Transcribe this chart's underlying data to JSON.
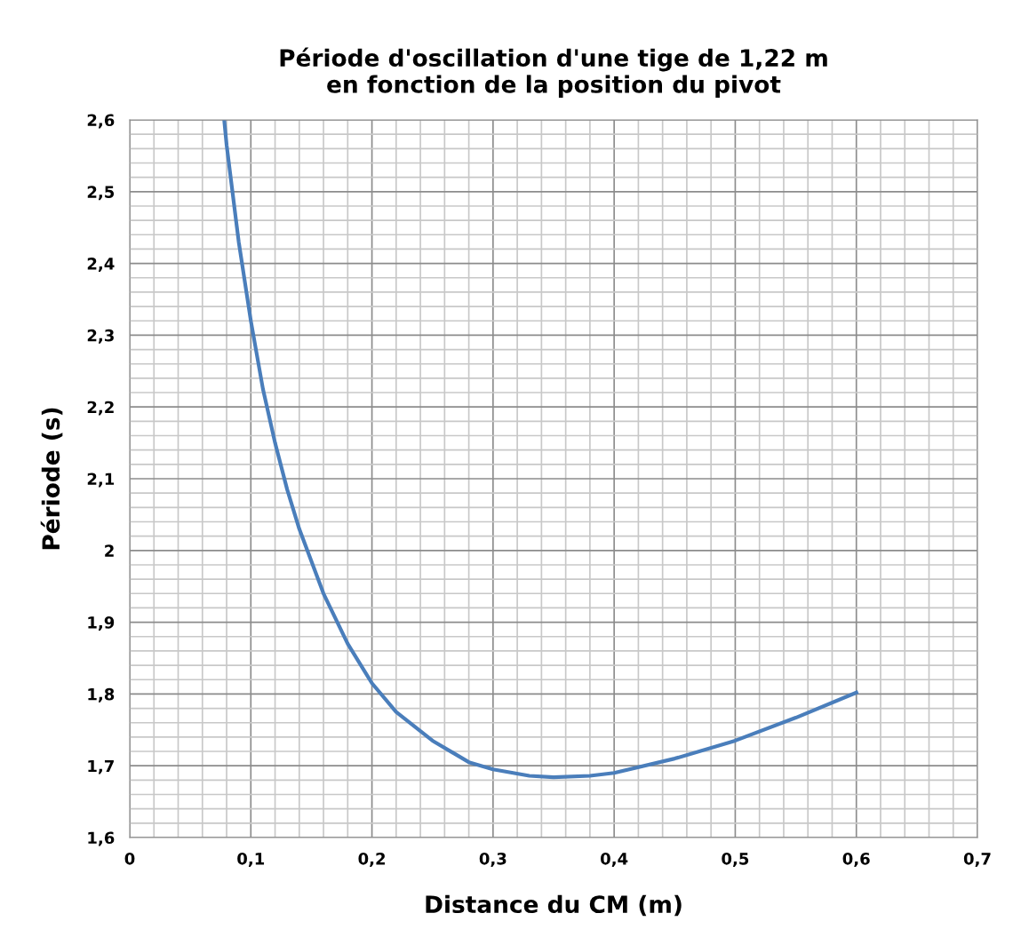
{
  "chart_data": {
    "type": "line",
    "title": "Période d'oscillation d'une tige de 1,22 m\nen fonction de la position du pivot",
    "xlabel": "Distance du CM (m)",
    "ylabel": "Période (s)",
    "series": [
      {
        "color": "#4a7ebb",
        "x": [
          0.078,
          0.08,
          0.09,
          0.1,
          0.11,
          0.12,
          0.13,
          0.14,
          0.16,
          0.18,
          0.2,
          0.22,
          0.25,
          0.28,
          0.3,
          0.33,
          0.35,
          0.38,
          0.4,
          0.45,
          0.5,
          0.55,
          0.6
        ],
        "values": [
          2.6,
          2.565,
          2.43,
          2.32,
          2.225,
          2.15,
          2.085,
          2.03,
          1.94,
          1.87,
          1.815,
          1.775,
          1.735,
          1.705,
          1.695,
          1.686,
          1.684,
          1.686,
          1.69,
          1.71,
          1.735,
          1.767,
          1.802
        ]
      }
    ],
    "xlim": [
      0,
      0.7
    ],
    "ylim": [
      1.6,
      2.6
    ],
    "xticks": [
      0,
      {
        "value": 0.1,
        "label": "0,1"
      },
      {
        "value": 0.2,
        "label": "0,2"
      },
      {
        "value": 0.3,
        "label": "0,3"
      },
      {
        "value": 0.4,
        "label": "0,4"
      },
      {
        "value": 0.5,
        "label": "0,5"
      },
      {
        "value": 0.6,
        "label": "0,6"
      },
      {
        "value": 0.7,
        "label": "0,7"
      }
    ],
    "yticks": [
      {
        "value": 1.6,
        "label": "1,6"
      },
      {
        "value": 1.7,
        "label": "1,7"
      },
      {
        "value": 1.8,
        "label": "1,8"
      },
      {
        "value": 1.9,
        "label": "1,9"
      },
      2,
      {
        "value": 2.1,
        "label": "2,1"
      },
      {
        "value": 2.2,
        "label": "2,2"
      },
      {
        "value": 2.3,
        "label": "2,3"
      },
      {
        "value": 2.4,
        "label": "2,4"
      },
      {
        "value": 2.5,
        "label": "2,5"
      },
      {
        "value": 2.6,
        "label": "2,6"
      }
    ],
    "grid": true,
    "marker": "none",
    "line_style": "solid"
  }
}
